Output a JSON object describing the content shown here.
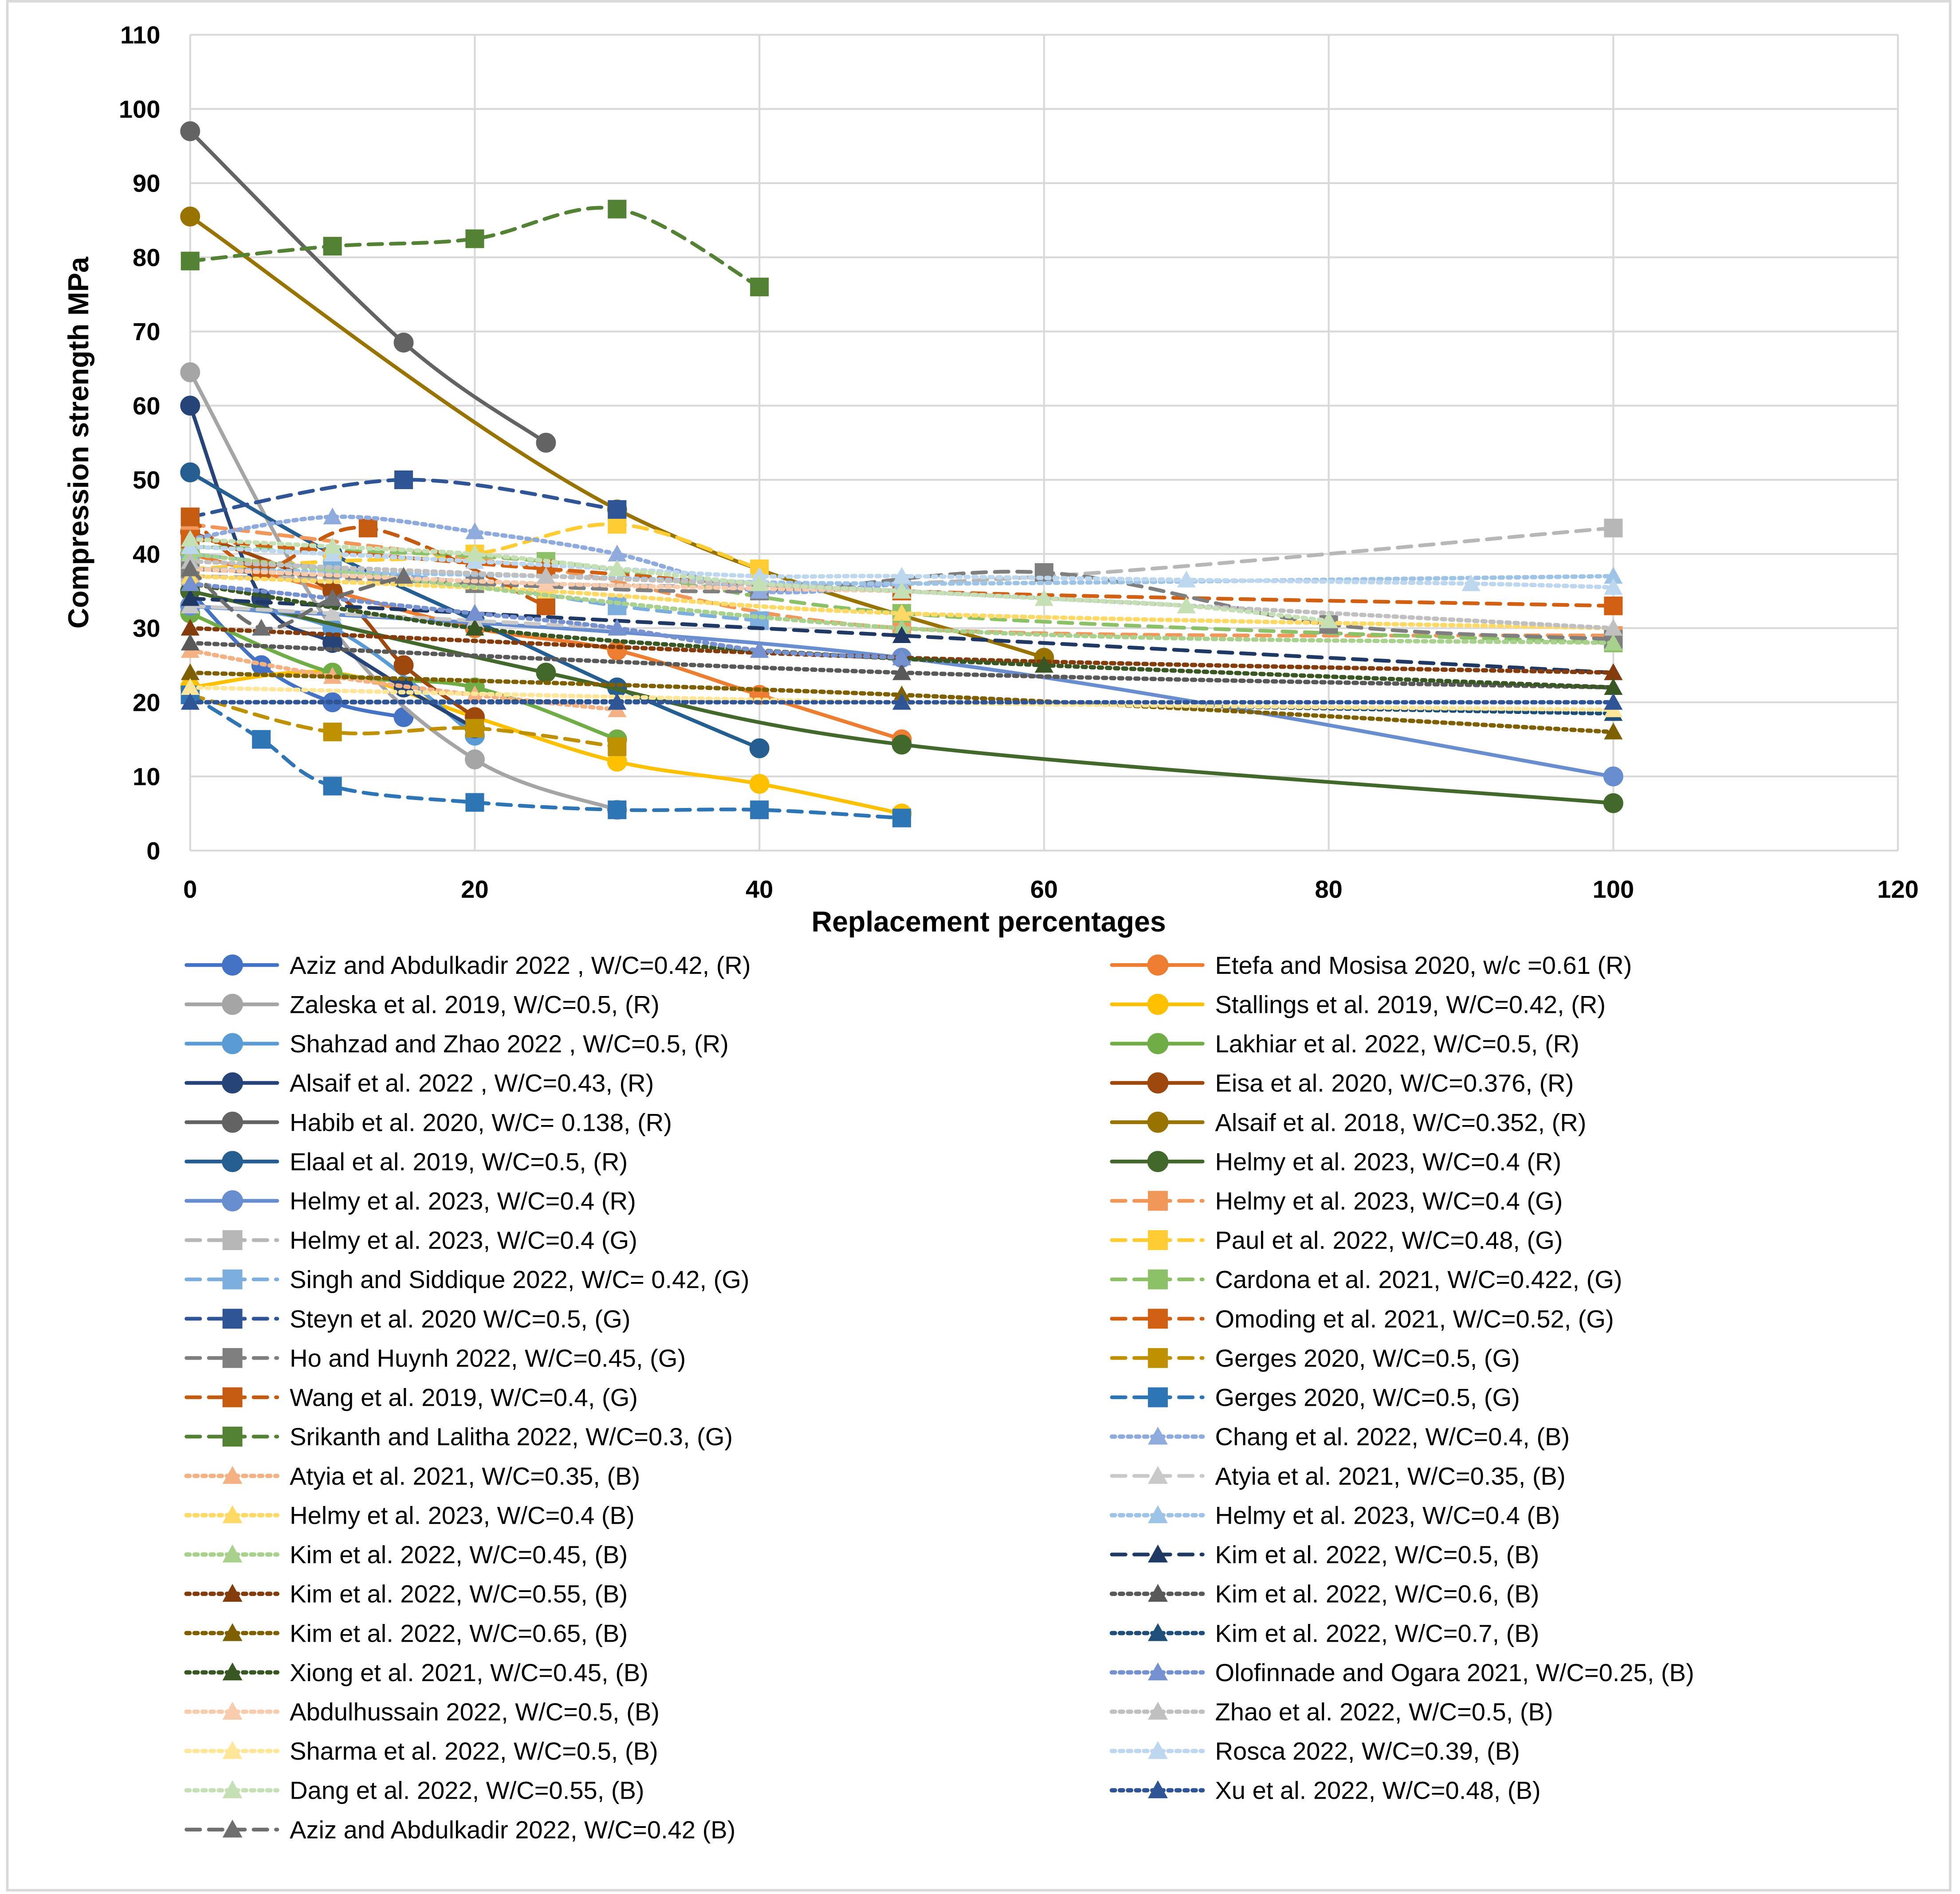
{
  "chart_data": {
    "type": "line",
    "title": "",
    "xlabel": "Replacement percentages",
    "ylabel": "Compression strength MPa",
    "xlim": [
      0,
      120
    ],
    "ylim": [
      0,
      110
    ],
    "xticks": [
      0,
      20,
      40,
      60,
      80,
      100,
      120
    ],
    "yticks": [
      0,
      10,
      20,
      30,
      40,
      50,
      60,
      70,
      80,
      90,
      100,
      110
    ],
    "grid": true,
    "legend_position": "bottom",
    "series": [
      {
        "name": "Aziz and Abdulkadir 2022 , W/C=0.42, (R)",
        "color": "#4472C4",
        "marker": "circle",
        "dash": "solid",
        "x": [
          0,
          5,
          10,
          15
        ],
        "y": [
          35,
          25,
          20,
          18
        ]
      },
      {
        "name": "Etefa and Mosisa 2020, w/c =0.61 (R)",
        "color": "#ED7D31",
        "marker": "circle",
        "dash": "solid",
        "x": [
          0,
          10,
          20,
          30,
          40,
          50
        ],
        "y": [
          40,
          35,
          30,
          27,
          21,
          15
        ]
      },
      {
        "name": "Zaleska et al. 2019, W/C=0.5, (R)",
        "color": "#A5A5A5",
        "marker": "circle",
        "dash": "solid",
        "x": [
          0,
          10,
          20,
          30
        ],
        "y": [
          64.5,
          30,
          12.3,
          5.5
        ]
      },
      {
        "name": "Stallings et al. 2019, W/C=0.42, (R)",
        "color": "#FFC000",
        "marker": "circle",
        "dash": "solid",
        "x": [
          0,
          10,
          20,
          30,
          40,
          50
        ],
        "y": [
          22,
          24,
          18,
          12,
          9,
          5
        ]
      },
      {
        "name": "Shahzad and Zhao 2022 , W/C=0.5, (R)",
        "color": "#5B9BD5",
        "marker": "circle",
        "dash": "solid",
        "x": [
          0,
          10,
          20
        ],
        "y": [
          33,
          30,
          15.5
        ]
      },
      {
        "name": "Lakhiar et al. 2022, W/C=0.5, (R)",
        "color": "#70AD47",
        "marker": "circle",
        "dash": "solid",
        "x": [
          0,
          10,
          20,
          30
        ],
        "y": [
          32,
          24,
          22,
          15
        ]
      },
      {
        "name": "Alsaif et al. 2022 , W/C=0.43, (R)",
        "color": "#264478",
        "marker": "circle",
        "dash": "solid",
        "x": [
          0,
          5,
          10,
          15,
          20
        ],
        "y": [
          60,
          34,
          28,
          22,
          16.5
        ]
      },
      {
        "name": "Eisa et al. 2020, W/C=0.376, (R)",
        "color": "#9E480E",
        "marker": "circle",
        "dash": "solid",
        "x": [
          0,
          10,
          15,
          20
        ],
        "y": [
          43,
          35,
          25,
          18
        ]
      },
      {
        "name": "Habib et al. 2020, W/C= 0.138, (R)",
        "color": "#636363",
        "marker": "circle",
        "dash": "solid",
        "x": [
          0,
          15,
          25
        ],
        "y": [
          97,
          68.5,
          55
        ]
      },
      {
        "name": "Alsaif et al. 2018, W/C=0.352, (R)",
        "color": "#997300",
        "marker": "circle",
        "dash": "solid",
        "x": [
          0,
          30,
          60
        ],
        "y": [
          85.5,
          46,
          26
        ]
      },
      {
        "name": "Elaal et al. 2019, W/C=0.5, (R)",
        "color": "#255E91",
        "marker": "circle",
        "dash": "solid",
        "x": [
          0,
          10,
          20,
          30,
          40
        ],
        "y": [
          51,
          40,
          31,
          22,
          13.8
        ]
      },
      {
        "name": "Helmy et al. 2023, W/C=0.4 (R)",
        "color": "#43682B",
        "marker": "circle",
        "dash": "solid",
        "x": [
          0,
          25,
          50,
          100
        ],
        "y": [
          35,
          24,
          14.3,
          6.4
        ]
      },
      {
        "name": "Helmy et al. 2023, W/C=0.4 (R)",
        "color": "#698ED0",
        "marker": "circle",
        "dash": "solid",
        "x": [
          0,
          50,
          100
        ],
        "y": [
          33,
          26,
          10
        ]
      },
      {
        "name": "Helmy et al. 2023, W/C=0.4 (G)",
        "color": "#F1975A",
        "marker": "square",
        "dash": "dash",
        "x": [
          0,
          25,
          50,
          100
        ],
        "y": [
          44,
          38,
          30,
          29
        ]
      },
      {
        "name": "Helmy et al. 2023, W/C=0.4 (G)",
        "color": "#B7B7B7",
        "marker": "square",
        "dash": "dash",
        "x": [
          0,
          50,
          100
        ],
        "y": [
          37,
          36,
          43.5
        ]
      },
      {
        "name": "Paul et al. 2022, W/C=0.48, (G)",
        "color": "#FFCD33",
        "marker": "square",
        "dash": "dash",
        "x": [
          0,
          10,
          20,
          30,
          40
        ],
        "y": [
          38,
          39,
          40,
          44,
          38
        ]
      },
      {
        "name": "Singh and Siddique 2022, W/C= 0.42, (G)",
        "color": "#7CAFDD",
        "marker": "square",
        "dash": "dash",
        "x": [
          0,
          10,
          20,
          30,
          40
        ],
        "y": [
          40,
          38,
          36,
          33,
          31
        ]
      },
      {
        "name": "Cardona et al. 2021, W/C=0.422, (G)",
        "color": "#8CC168",
        "marker": "square",
        "dash": "dash",
        "x": [
          0,
          25,
          50,
          100
        ],
        "y": [
          41,
          39,
          32,
          28
        ]
      },
      {
        "name": "Steyn et al. 2020 W/C=0.5, (G)",
        "color": "#2F5597",
        "marker": "square",
        "dash": "dash",
        "x": [
          0,
          15,
          30
        ],
        "y": [
          45,
          50,
          46
        ]
      },
      {
        "name": "Omoding et al. 2021, W/C=0.52, (G)",
        "color": "#D26012",
        "marker": "square",
        "dash": "dash",
        "x": [
          0,
          25,
          50,
          100
        ],
        "y": [
          42,
          38,
          35,
          33
        ]
      },
      {
        "name": "Ho and Huynh 2022, W/C=0.45, (G)",
        "color": "#7F7F7F",
        "marker": "square",
        "dash": "dash",
        "x": [
          0,
          20,
          40,
          60,
          80,
          100
        ],
        "y": [
          38,
          36,
          35,
          37.5,
          30.5,
          28.5
        ]
      },
      {
        "name": "Gerges 2020, W/C=0.5, (G)",
        "color": "#BF9000",
        "marker": "square",
        "dash": "dash",
        "x": [
          0,
          10,
          20,
          30
        ],
        "y": [
          21,
          16,
          16.5,
          14
        ]
      },
      {
        "name": "Wang et al. 2019, W/C=0.4, (G)",
        "color": "#C55A11",
        "marker": "square",
        "dash": "dash",
        "x": [
          0,
          5,
          12.5,
          25
        ],
        "y": [
          45,
          38,
          43.5,
          33
        ]
      },
      {
        "name": "Gerges 2020, W/C=0.5, (G)",
        "color": "#2E75B6",
        "marker": "square",
        "dash": "dash",
        "x": [
          0,
          5,
          10,
          20,
          30,
          40,
          50
        ],
        "y": [
          21,
          15,
          8.7,
          6.5,
          5.5,
          5.5,
          4.4
        ]
      },
      {
        "name": "Srikanth and Lalitha 2022, W/C=0.3, (G)",
        "color": "#548235",
        "marker": "square",
        "dash": "dash",
        "x": [
          0,
          10,
          20,
          30,
          40
        ],
        "y": [
          79.5,
          81.5,
          82.5,
          86.5,
          76
        ]
      },
      {
        "name": "Chang et al. 2022, W/C=0.4, (B)",
        "color": "#8FAADC",
        "marker": "triangle",
        "dash": "dot",
        "x": [
          0,
          10,
          20,
          30,
          40,
          50
        ],
        "y": [
          42,
          45,
          43,
          40,
          35,
          36
        ]
      },
      {
        "name": "Atyia et al. 2021, W/C=0.35, (B)",
        "color": "#F4B183",
        "marker": "triangle",
        "dash": "dot",
        "x": [
          0,
          10,
          20,
          30
        ],
        "y": [
          27,
          23.5,
          21,
          19
        ]
      },
      {
        "name": "Atyia et al. 2021, W/C=0.35, (B)",
        "color": "#C9C9C9",
        "marker": "triangle",
        "dash": "dash",
        "x": [
          0,
          10,
          20,
          30
        ],
        "y": [
          33,
          32,
          31,
          30
        ]
      },
      {
        "name": "Helmy et al. 2023, W/C=0.4 (B)",
        "color": "#FFD966",
        "marker": "triangle",
        "dash": "dot",
        "x": [
          0,
          25,
          50,
          100
        ],
        "y": [
          37,
          35,
          32,
          30
        ]
      },
      {
        "name": "Helmy et al. 2023, W/C=0.4 (B)",
        "color": "#9DC3E6",
        "marker": "triangle",
        "dash": "dot",
        "x": [
          0,
          25,
          50,
          100
        ],
        "y": [
          38,
          37,
          36,
          37
        ]
      },
      {
        "name": "Kim et al. 2022, W/C=0.45, (B)",
        "color": "#A9D18E",
        "marker": "triangle",
        "dash": "dot",
        "x": [
          0,
          50,
          100
        ],
        "y": [
          40,
          30,
          28
        ]
      },
      {
        "name": "Kim et al. 2022, W/C=0.5, (B)",
        "color": "#203864",
        "marker": "triangle",
        "dash": "dash",
        "x": [
          0,
          50,
          100
        ],
        "y": [
          34,
          29,
          24
        ]
      },
      {
        "name": "Kim et al. 2022, W/C=0.55, (B)",
        "color": "#843C0C",
        "marker": "triangle",
        "dash": "dot",
        "x": [
          0,
          50,
          100
        ],
        "y": [
          30,
          26,
          24
        ]
      },
      {
        "name": "Kim et al. 2022, W/C=0.6, (B)",
        "color": "#595959",
        "marker": "triangle",
        "dash": "dot",
        "x": [
          0,
          50,
          100
        ],
        "y": [
          28,
          24,
          22
        ]
      },
      {
        "name": "Kim et al. 2022, W/C=0.65, (B)",
        "color": "#7F6000",
        "marker": "triangle",
        "dash": "dot",
        "x": [
          0,
          50,
          100
        ],
        "y": [
          24,
          21,
          16
        ]
      },
      {
        "name": "Kim et al. 2022, W/C=0.7, (B)",
        "color": "#1F4E79",
        "marker": "triangle",
        "dash": "dot",
        "x": [
          0,
          50,
          100
        ],
        "y": [
          20,
          20,
          18.5
        ]
      },
      {
        "name": "Xiong et al. 2021, W/C=0.45, (B)",
        "color": "#385723",
        "marker": "triangle",
        "dash": "dot",
        "x": [
          0,
          20,
          40,
          60,
          100
        ],
        "y": [
          36,
          30,
          27,
          25,
          22
        ]
      },
      {
        "name": "Olofinnade and Ogara 2021, W/C=0.25, (B)",
        "color": "#7691CF",
        "marker": "triangle",
        "dash": "dot",
        "x": [
          0,
          10,
          20,
          30,
          40,
          50
        ],
        "y": [
          36,
          34,
          32,
          30,
          27,
          26
        ]
      },
      {
        "name": "Abdulhussain 2022, W/C=0.5, (B)",
        "color": "#F8CBAD",
        "marker": "triangle",
        "dash": "dot",
        "x": [
          0,
          25,
          50
        ],
        "y": [
          38,
          36,
          35
        ]
      },
      {
        "name": "Zhao et al. 2022, W/C=0.5, (B)",
        "color": "#C0C0C0",
        "marker": "triangle",
        "dash": "dot",
        "x": [
          0,
          25,
          50,
          100
        ],
        "y": [
          39,
          37,
          35,
          30
        ]
      },
      {
        "name": "Sharma et al. 2022, W/C=0.5, (B)",
        "color": "#FFE699",
        "marker": "triangle",
        "dash": "dot",
        "x": [
          0,
          50,
          100
        ],
        "y": [
          22,
          20,
          19
        ]
      },
      {
        "name": "Rosca 2022, W/C=0.39, (B)",
        "color": "#BDD7EE",
        "marker": "triangle",
        "dash": "dot",
        "x": [
          0,
          10,
          20,
          30,
          40,
          50,
          70,
          90,
          100
        ],
        "y": [
          41,
          40,
          39,
          38,
          37,
          37,
          36.5,
          36,
          35.5
        ]
      },
      {
        "name": "Dang et al. 2022, W/C=0.55, (B)",
        "color": "#C5E0B4",
        "marker": "triangle",
        "dash": "dot",
        "x": [
          0,
          10,
          20,
          30,
          40,
          50,
          60,
          70,
          80
        ],
        "y": [
          42,
          41,
          40,
          38,
          36,
          35,
          34,
          33,
          31
        ]
      },
      {
        "name": "Xu et al. 2022, W/C=0.48, (B)",
        "color": "#2F5597",
        "marker": "triangle",
        "dash": "dot",
        "x": [
          0,
          30,
          50,
          100
        ],
        "y": [
          20,
          20,
          20,
          20
        ]
      },
      {
        "name": "Aziz and Abdulkadir 2022, W/C=0.42 (B)",
        "color": "#6F6F6F",
        "marker": "triangle",
        "dash": "dash",
        "x": [
          0,
          5,
          10,
          15
        ],
        "y": [
          38,
          30,
          34,
          37
        ]
      }
    ]
  }
}
